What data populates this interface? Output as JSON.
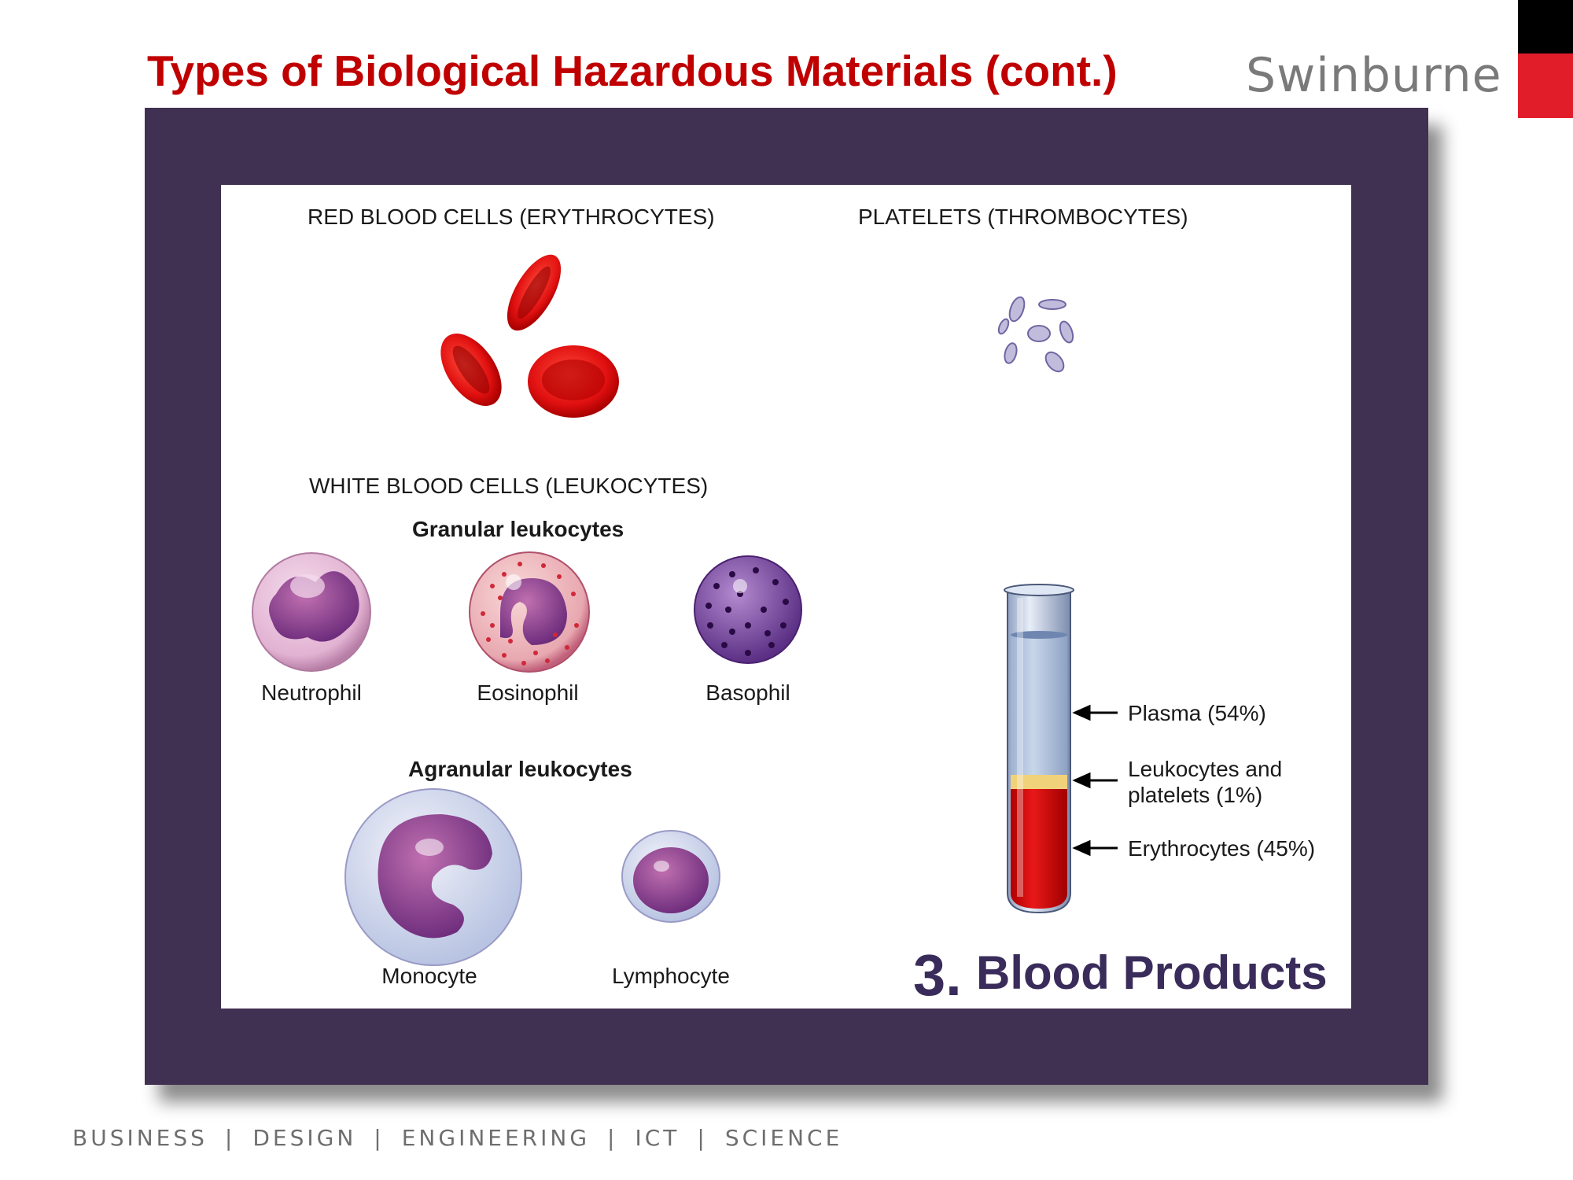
{
  "slide": {
    "title": "Types of Biological Hazardous Materials (cont.)",
    "brand": "Swinburne"
  },
  "figure": {
    "red_cells_heading": "RED BLOOD CELLS (ERYTHROCYTES)",
    "platelets_heading": "PLATELETS (THROMBOCYTES)",
    "white_cells_heading": "WHITE BLOOD CELLS (LEUKOCYTES)",
    "granular_heading": "Granular leukocytes",
    "agranular_heading": "Agranular leukocytes",
    "granular_cells": [
      "Neutrophil",
      "Eosinophil",
      "Basophil"
    ],
    "agranular_cells": [
      "Monocyte",
      "Lymphocyte"
    ],
    "tube_labels": {
      "plasma": "Plasma (54%)",
      "buffy_line1": "Leukocytes and",
      "buffy_line2": "platelets (1%)",
      "erythrocytes": "Erythrocytes (45%)"
    },
    "tube_fractions": {
      "plasma": 0.54,
      "buffy": 0.01,
      "erythrocytes": 0.45
    },
    "caption_number": "3.",
    "caption_text": "Blood Products"
  },
  "footer": {
    "items": [
      "BUSINESS",
      "DESIGN",
      "ENGINEERING",
      "ICT",
      "SCIENCE"
    ],
    "separator": "|"
  },
  "colors": {
    "title": "#c00000",
    "frame": "#403051",
    "accent_red": "#e21d2a",
    "caption": "#3a2c5a"
  }
}
